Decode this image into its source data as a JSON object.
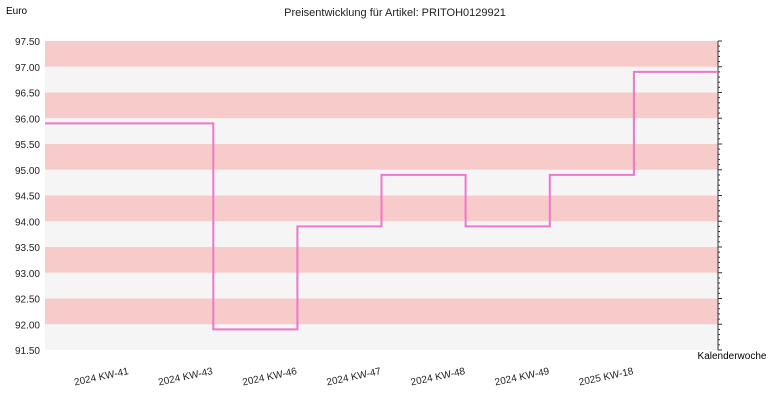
{
  "chart_data": {
    "type": "line",
    "step": true,
    "title": "Preisentwicklung für Artikel: PRITOH0129921",
    "ylabel": "Euro",
    "xlabel": "Kalenderwoche",
    "categories": [
      "2024 KW-41",
      "2024 KW-43",
      "2024 KW-46",
      "2024 KW-47",
      "2024 KW-48",
      "2024 KW-49",
      "2025 KW-18"
    ],
    "series": [
      {
        "values": [
          95.9,
          91.9,
          93.9,
          94.9,
          93.9,
          94.9,
          96.9
        ]
      }
    ],
    "ylim": [
      91.5,
      97.5
    ],
    "yticks": [
      "91.50",
      "92.00",
      "92.50",
      "93.00",
      "93.50",
      "94.00",
      "94.50",
      "95.00",
      "95.50",
      "96.00",
      "96.50",
      "97.00",
      "97.50"
    ],
    "grid": "alternating horizontal bands",
    "colors": {
      "band_a": "#f8cbcb",
      "band_b": "#f5f5f5",
      "line": "#ee77cc"
    }
  }
}
